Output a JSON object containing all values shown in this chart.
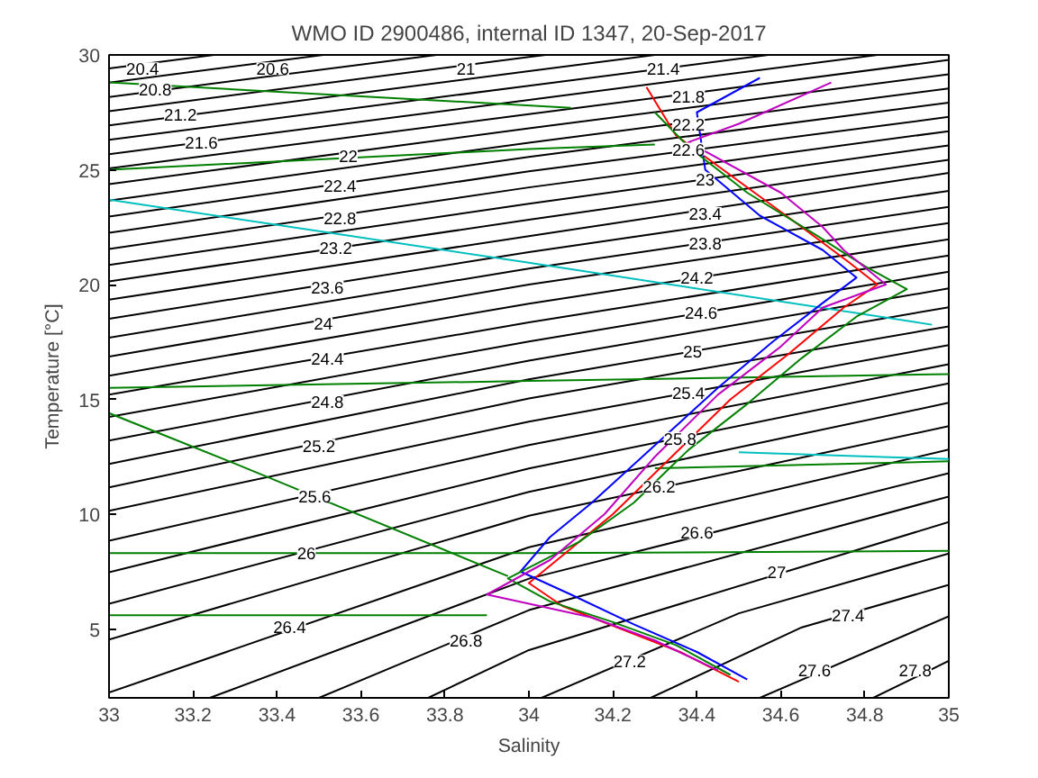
{
  "chart_data": {
    "type": "line",
    "title": "WMO ID 2900486, internal ID 1347, 20-Sep-2017",
    "xlabel": "Salinity",
    "ylabel": "Temperature [°C]",
    "xlim": [
      33,
      35
    ],
    "xticks": [
      33,
      33.2,
      33.4,
      33.6,
      33.8,
      34,
      34.2,
      34.4,
      34.6,
      34.8,
      35
    ],
    "ylim": [
      2,
      30
    ],
    "yticks": [
      5,
      10,
      15,
      20,
      25,
      30
    ],
    "grid": false,
    "marker": "none",
    "line_style": "solid",
    "series": [
      {
        "color": "#000000",
        "x": [
          33,
          33.25
        ],
        "values": [
          29.41,
          30
        ]
      },
      {
        "color": "#000000",
        "x": [
          33,
          33.51
        ],
        "values": [
          28.79,
          30
        ]
      },
      {
        "color": "#000000",
        "x": [
          33,
          33.78
        ],
        "values": [
          28.17,
          30
        ]
      },
      {
        "color": "#000000",
        "x": [
          33,
          34,
          34.04
        ],
        "values": [
          27.55,
          29.91,
          30
        ]
      },
      {
        "color": "#000000",
        "x": [
          33,
          34,
          34.3
        ],
        "values": [
          26.93,
          29.29,
          30
        ]
      },
      {
        "color": "#000000",
        "x": [
          33,
          34,
          34.57
        ],
        "values": [
          26.3,
          28.66,
          30
        ]
      },
      {
        "color": "#000000",
        "x": [
          33,
          34,
          34.83
        ],
        "values": [
          25.68,
          28.04,
          30
        ]
      },
      {
        "color": "#000000",
        "x": [
          33,
          34,
          35
        ],
        "values": [
          25.06,
          27.42,
          29.78
        ]
      },
      {
        "color": "#000000",
        "x": [
          33,
          34,
          35
        ],
        "values": [
          24.37,
          26.8,
          29.16
        ]
      },
      {
        "color": "#000000",
        "x": [
          33,
          34,
          35
        ],
        "values": [
          23.66,
          26.18,
          28.54
        ]
      },
      {
        "color": "#000000",
        "x": [
          33,
          34,
          35
        ],
        "values": [
          22.96,
          25.56,
          27.92
        ]
      },
      {
        "color": "#000000",
        "x": [
          33,
          34,
          35
        ],
        "values": [
          22.25,
          24.93,
          27.3
        ]
      },
      {
        "color": "#000000",
        "x": [
          33,
          34,
          35
        ],
        "values": [
          21.55,
          24.23,
          26.68
        ]
      },
      {
        "color": "#000000",
        "x": [
          33,
          34,
          35
        ],
        "values": [
          20.85,
          23.52,
          26.06
        ]
      },
      {
        "color": "#000000",
        "x": [
          33,
          34,
          35
        ],
        "values": [
          20.14,
          22.82,
          25.43
        ]
      },
      {
        "color": "#000000",
        "x": [
          33,
          34,
          35
        ],
        "values": [
          19.34,
          22.11,
          24.86
        ]
      },
      {
        "color": "#000000",
        "x": [
          33,
          34,
          35
        ],
        "values": [
          18.51,
          21.41,
          24.08
        ]
      },
      {
        "color": "#000000",
        "x": [
          33,
          34,
          35
        ],
        "values": [
          17.69,
          20.7,
          23.38
        ]
      },
      {
        "color": "#000000",
        "x": [
          33,
          34,
          35
        ],
        "values": [
          16.86,
          20.0,
          22.68
        ]
      },
      {
        "color": "#000000",
        "x": [
          33,
          34,
          35
        ],
        "values": [
          16.03,
          19.17,
          21.97
        ]
      },
      {
        "color": "#000000",
        "x": [
          33,
          34,
          35
        ],
        "values": [
          15.21,
          18.35,
          21.27
        ]
      },
      {
        "color": "#000000",
        "x": [
          33,
          34,
          35
        ],
        "values": [
          14.23,
          17.52,
          20.56
        ]
      },
      {
        "color": "#000000",
        "x": [
          33,
          34,
          35
        ],
        "values": [
          13.21,
          16.69,
          19.83
        ]
      },
      {
        "color": "#000000",
        "x": [
          33,
          34,
          35
        ],
        "values": [
          12.19,
          15.87,
          19.01
        ]
      },
      {
        "color": "#000000",
        "x": [
          33,
          34,
          35
        ],
        "values": [
          11.17,
          15.04,
          18.18
        ]
      },
      {
        "color": "#000000",
        "x": [
          33,
          34,
          35
        ],
        "values": [
          10.15,
          14.03,
          17.36
        ]
      },
      {
        "color": "#000000",
        "x": [
          33,
          34,
          35
        ],
        "values": [
          8.84,
          13.01,
          16.53
        ]
      },
      {
        "color": "#000000",
        "x": [
          33,
          34,
          35
        ],
        "values": [
          7.47,
          11.99,
          15.7
        ]
      },
      {
        "color": "#000000",
        "x": [
          33,
          34,
          35
        ],
        "values": [
          6.1,
          10.97,
          14.85
        ]
      },
      {
        "color": "#000000",
        "x": [
          33,
          34,
          35
        ],
        "values": [
          4.54,
          9.93,
          13.83
        ]
      },
      {
        "color": "#000000",
        "x": [
          33,
          34,
          35
        ],
        "values": [
          2.23,
          8.56,
          12.81
        ]
      },
      {
        "color": "#000000",
        "x": [
          33.24,
          34,
          35
        ],
        "values": [
          2,
          7.19,
          11.79
        ]
      },
      {
        "color": "#000000",
        "x": [
          33.5,
          34,
          35
        ],
        "values": [
          2,
          5.82,
          10.77
        ]
      },
      {
        "color": "#000000",
        "x": [
          33.76,
          34,
          35
        ],
        "values": [
          2,
          4.08,
          9.66
        ]
      },
      {
        "color": "#000000",
        "x": [
          34.03,
          34.5,
          35
        ],
        "values": [
          2,
          5.68,
          8.29
        ]
      },
      {
        "color": "#000000",
        "x": [
          34.29,
          34.65,
          35
        ],
        "values": [
          2,
          5.07,
          6.92
        ]
      },
      {
        "color": "#000000",
        "x": [
          34.55,
          35
        ],
        "values": [
          2,
          5.55
        ]
      },
      {
        "color": "#000000",
        "x": [
          34.82,
          35
        ],
        "values": [
          2,
          3.61
        ]
      },
      {
        "color": "#008000",
        "x": [
          33,
          33.6,
          34.1
        ],
        "values": [
          28.8,
          28.2,
          27.7
        ]
      },
      {
        "color": "#008000",
        "x": [
          33,
          34,
          34.3
        ],
        "values": [
          25.0,
          25.9,
          26.1
        ]
      },
      {
        "color": "#008000",
        "x": [
          33,
          34,
          35
        ],
        "values": [
          15.5,
          15.8,
          16.1
        ]
      },
      {
        "color": "#008000",
        "x": [
          34.3,
          35
        ],
        "values": [
          12.0,
          12.3
        ]
      },
      {
        "color": "#008000",
        "x": [
          33,
          34,
          35
        ],
        "values": [
          8.3,
          8.3,
          8.4
        ]
      },
      {
        "color": "#008000",
        "x": [
          33,
          33.9
        ],
        "values": [
          5.6,
          5.6
        ]
      },
      {
        "color": "#008000",
        "x": [
          33,
          33.3,
          33.95
        ],
        "values": [
          14.4,
          12.2,
          7.3
        ]
      },
      {
        "color": "#00bfbf",
        "x": [
          33,
          34,
          34.96
        ],
        "values": [
          23.7,
          20.95,
          18.25
        ]
      },
      {
        "color": "#00bfbf",
        "x": [
          34.5,
          35
        ],
        "values": [
          12.7,
          12.4
        ]
      },
      {
        "color": "#ff0000",
        "x": [
          34.28,
          34.35,
          34.5,
          34.65,
          34.76,
          34.83,
          34.75,
          34.62,
          34.48,
          34.34,
          34.2,
          34.1,
          34.0,
          34.08,
          34.22,
          34.36,
          34.5
        ],
        "values": [
          28.6,
          26.5,
          24.5,
          22.5,
          21.0,
          20.0,
          19.0,
          17.0,
          15.0,
          12.5,
          10.0,
          8.5,
          7.0,
          6.0,
          5.0,
          4.0,
          2.7
        ]
      },
      {
        "color": "#0000ff",
        "x": [
          34.55,
          34.4,
          34.42,
          34.55,
          34.7,
          34.78,
          34.7,
          34.58,
          34.45,
          34.3,
          34.15,
          34.05,
          33.98,
          34.1,
          34.25,
          34.4,
          34.52
        ],
        "values": [
          29.0,
          27.5,
          25.0,
          23.0,
          21.5,
          20.3,
          19.2,
          17.5,
          15.5,
          13.0,
          10.5,
          9.0,
          7.5,
          6.5,
          5.2,
          4.0,
          2.8
        ]
      },
      {
        "color": "#008000",
        "x": [
          34.3,
          34.38,
          34.52,
          34.68,
          34.8,
          34.9,
          34.78,
          34.65,
          34.52,
          34.38,
          34.25,
          34.12,
          33.95,
          34.05,
          34.2,
          34.35,
          34.48
        ],
        "values": [
          27.5,
          26.0,
          24.0,
          22.2,
          20.8,
          19.8,
          18.6,
          16.8,
          14.8,
          12.8,
          10.5,
          8.8,
          7.2,
          6.2,
          5.3,
          4.3,
          3.0
        ]
      },
      {
        "color": "#bf00bf",
        "x": [
          34.72,
          34.5,
          34.38,
          34.6,
          34.7,
          34.75,
          34.85,
          34.7,
          34.6,
          34.45,
          34.3,
          34.18,
          34.05,
          33.9,
          34.15,
          34.3,
          34.45
        ],
        "values": [
          28.8,
          27.0,
          26.2,
          24.0,
          22.5,
          21.5,
          20.0,
          19.0,
          17.3,
          15.2,
          12.5,
          10.0,
          8.0,
          6.5,
          5.5,
          4.5,
          3.2
        ]
      }
    ],
    "annotations": [
      {
        "text": "20.4",
        "x": 33.08,
        "y": 29.4
      },
      {
        "text": "20.6",
        "x": 33.39,
        "y": 29.4
      },
      {
        "text": "21",
        "x": 33.85,
        "y": 29.4
      },
      {
        "text": "20.8",
        "x": 33.11,
        "y": 28.5
      },
      {
        "text": "21.2",
        "x": 33.17,
        "y": 27.4
      },
      {
        "text": "21.6",
        "x": 33.22,
        "y": 26.2
      },
      {
        "text": "21.4",
        "x": 34.32,
        "y": 29.4
      },
      {
        "text": "21.8",
        "x": 34.38,
        "y": 28.2
      },
      {
        "text": "22.2",
        "x": 34.38,
        "y": 27.0
      },
      {
        "text": "22.6",
        "x": 34.38,
        "y": 25.9
      },
      {
        "text": "22",
        "x": 33.57,
        "y": 25.6
      },
      {
        "text": "22.4",
        "x": 33.55,
        "y": 24.3
      },
      {
        "text": "22.8",
        "x": 33.55,
        "y": 22.9
      },
      {
        "text": "23.2",
        "x": 33.54,
        "y": 21.6
      },
      {
        "text": "23",
        "x": 34.42,
        "y": 24.6
      },
      {
        "text": "23.4",
        "x": 34.42,
        "y": 23.1
      },
      {
        "text": "23.8",
        "x": 34.42,
        "y": 21.8
      },
      {
        "text": "23.6",
        "x": 33.52,
        "y": 19.9
      },
      {
        "text": "24",
        "x": 33.51,
        "y": 18.3
      },
      {
        "text": "24.4",
        "x": 33.52,
        "y": 16.8
      },
      {
        "text": "24.8",
        "x": 33.52,
        "y": 14.9
      },
      {
        "text": "25.2",
        "x": 33.5,
        "y": 13.0
      },
      {
        "text": "25.6",
        "x": 33.49,
        "y": 10.8
      },
      {
        "text": "26",
        "x": 33.47,
        "y": 8.3
      },
      {
        "text": "26.4",
        "x": 33.43,
        "y": 5.1
      },
      {
        "text": "26.8",
        "x": 33.85,
        "y": 4.5
      },
      {
        "text": "24.2",
        "x": 34.4,
        "y": 20.3
      },
      {
        "text": "24.6",
        "x": 34.41,
        "y": 18.8
      },
      {
        "text": "25",
        "x": 34.39,
        "y": 17.1
      },
      {
        "text": "25.4",
        "x": 34.38,
        "y": 15.3
      },
      {
        "text": "25.8",
        "x": 34.36,
        "y": 13.3
      },
      {
        "text": "26.2",
        "x": 34.31,
        "y": 11.2
      },
      {
        "text": "26.6",
        "x": 34.4,
        "y": 9.2
      },
      {
        "text": "27",
        "x": 34.59,
        "y": 7.5
      },
      {
        "text": "27.2",
        "x": 34.24,
        "y": 3.6
      },
      {
        "text": "27.4",
        "x": 34.76,
        "y": 5.6
      },
      {
        "text": "27.6",
        "x": 34.68,
        "y": 3.2
      },
      {
        "text": "27.8",
        "x": 34.92,
        "y": 3.2
      }
    ]
  }
}
